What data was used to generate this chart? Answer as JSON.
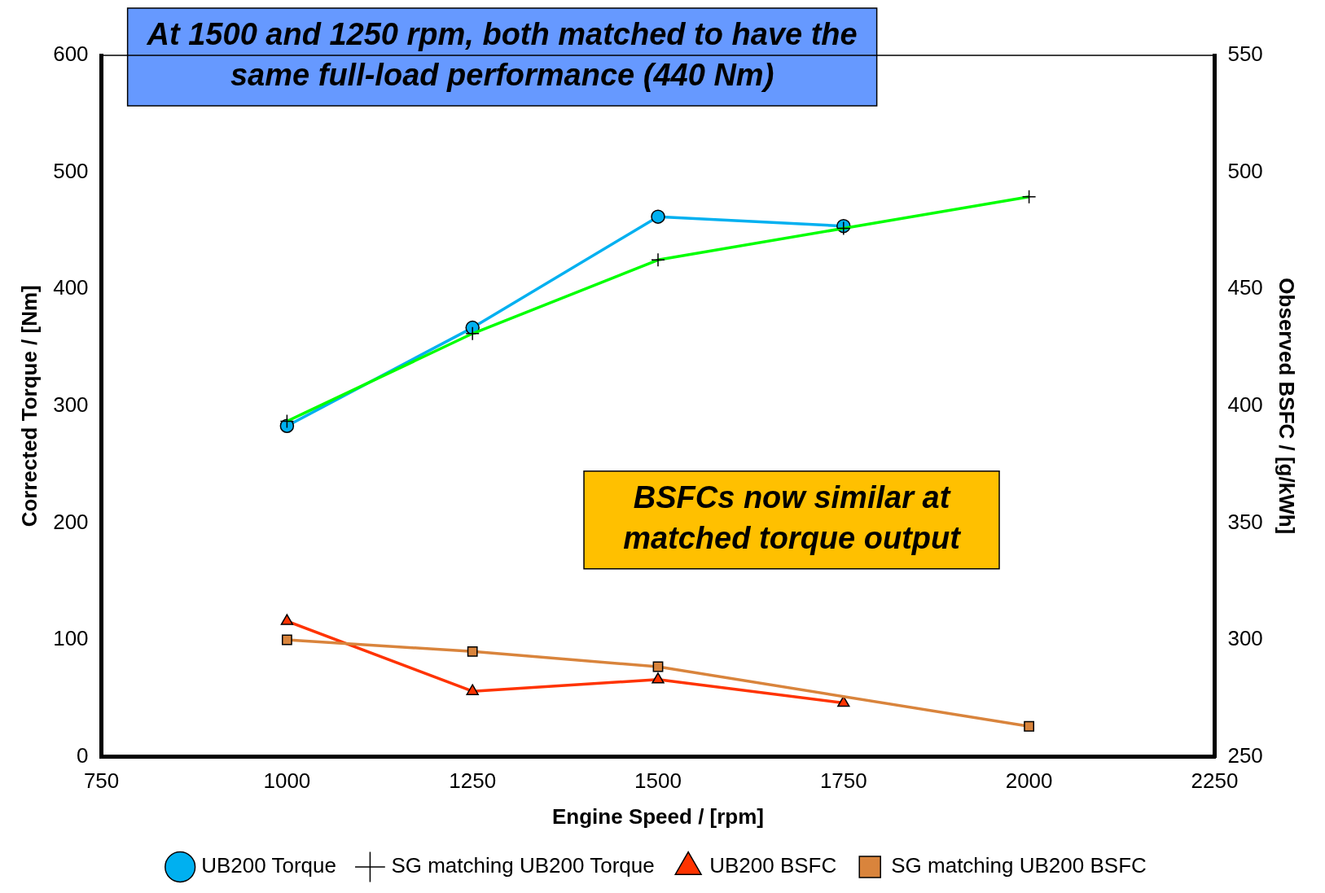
{
  "chart_data": {
    "type": "line",
    "xlabel": "Engine Speed / [rpm]",
    "ylabel": "Corrected Torque / [Nm]",
    "y2label": "Observed BSFC / [g/kWh]",
    "xlim": [
      750,
      2250
    ],
    "xticks": [
      750,
      1000,
      1250,
      1500,
      1750,
      2000,
      2250
    ],
    "ylim": [
      0,
      600
    ],
    "yticks": [
      0,
      100,
      200,
      300,
      400,
      500,
      600
    ],
    "y2lim": [
      250,
      550
    ],
    "y2ticks": [
      250,
      300,
      350,
      400,
      450,
      500,
      550
    ],
    "grid": false,
    "legend": "bottom",
    "line_style": "solid",
    "series": [
      {
        "name": "UB200 Torque",
        "color": "#00b0f0",
        "marker": "circle",
        "x": [
          1000,
          1250,
          1500,
          1750
        ],
        "values": [
          283,
          367,
          462,
          454
        ]
      },
      {
        "name": "SG matching UB200 Torque",
        "color": "#00ff00",
        "marker": "cross",
        "x": [
          1000,
          1250,
          1500,
          1750,
          2000
        ],
        "values": [
          287,
          362,
          425,
          452,
          479
        ]
      },
      {
        "name": "UB200 BSFC",
        "color": "#ff3300",
        "marker": "triangle",
        "axis": "y2",
        "x": [
          1000,
          1250,
          1500,
          1750
        ],
        "values": [
          308,
          278,
          283,
          273
        ]
      },
      {
        "name": "SG matching UB200 BSFC",
        "color": "#d9843c",
        "marker": "square",
        "axis": "y2",
        "x": [
          1000,
          1250,
          1500,
          2000
        ],
        "values": [
          300,
          295,
          288.5,
          263
        ]
      }
    ],
    "annotations": [
      "At 1500 and 1250 rpm, both matched to have the same full-load performance (440 Nm)",
      "BSFCs now similar at matched torque output"
    ]
  }
}
